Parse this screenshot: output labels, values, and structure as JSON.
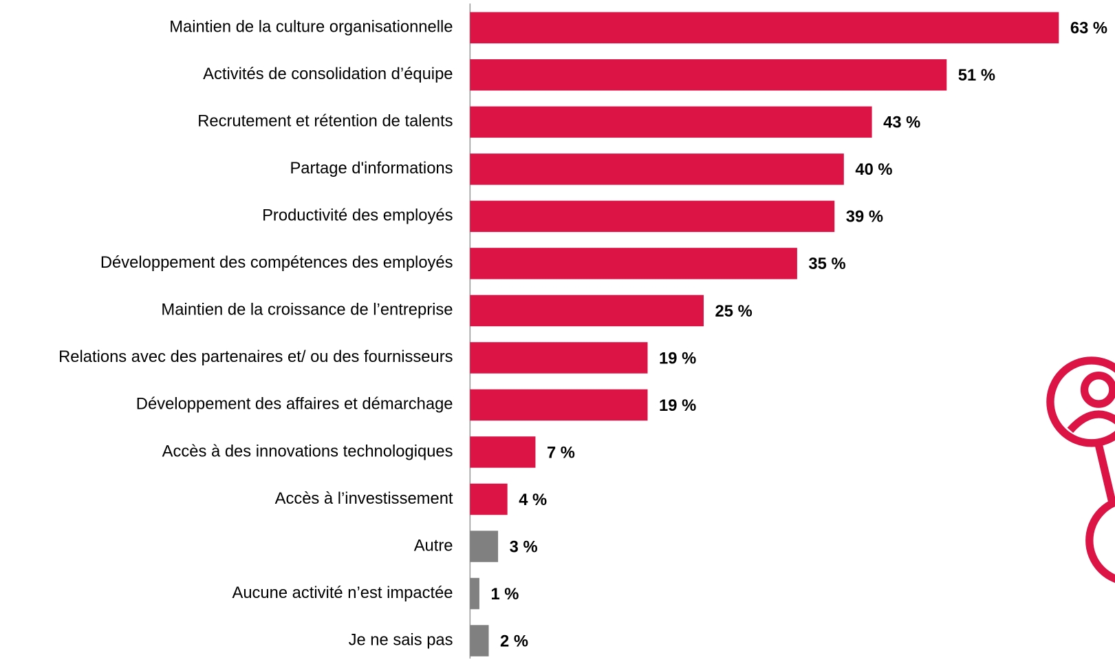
{
  "chart_data": {
    "type": "bar",
    "orientation": "horizontal",
    "categories": [
      "Maintien de la culture organisationnelle",
      "Activités de consolidation d’équipe",
      "Recrutement et rétention de talents",
      "Partage d'informations",
      "Productivité des employés",
      "Développement des compétences des employés",
      "Maintien de la croissance de l’entreprise",
      "Relations avec des partenaires et/ ou des fournisseurs",
      "Développement des affaires et démarchage",
      "Accès à des innovations technologiques",
      "Accès à l’investissement",
      "Autre",
      "Aucune activité n’est impactée",
      "Je ne sais pas"
    ],
    "values": [
      63,
      51,
      43,
      40,
      39,
      35,
      25,
      19,
      19,
      7,
      4,
      3,
      1,
      2
    ],
    "value_labels": [
      "63 %",
      "51 %",
      "43 %",
      "40 %",
      "39 %",
      "35 %",
      "25 %",
      "19 %",
      "19 %",
      "7 %",
      "4 %",
      "3 %",
      "1 %",
      "2 %"
    ],
    "colors": [
      "#dc1446",
      "#dc1446",
      "#dc1446",
      "#dc1446",
      "#dc1446",
      "#dc1446",
      "#dc1446",
      "#dc1446",
      "#dc1446",
      "#dc1446",
      "#dc1446",
      "#808080",
      "#808080",
      "#808080"
    ]
  }
}
